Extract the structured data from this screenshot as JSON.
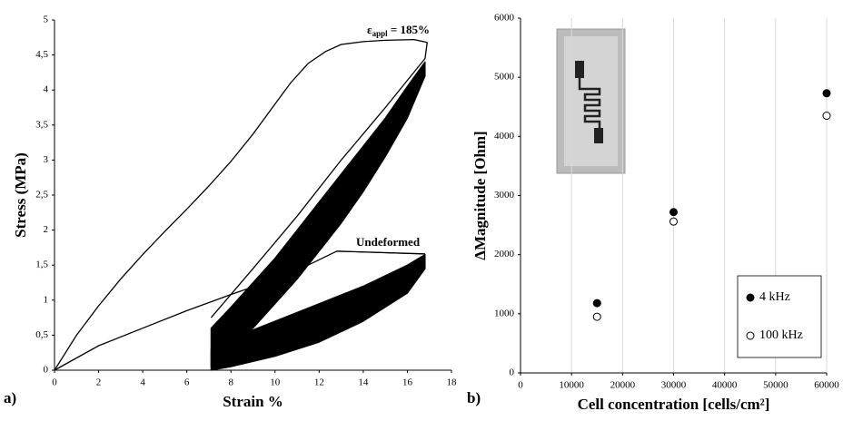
{
  "chart_data": [
    {
      "type": "line",
      "panel": "a)",
      "x_label": "Strain %",
      "y_label": "Stress (MPa)",
      "xlim": [
        0,
        18
      ],
      "xticks": [
        0,
        2,
        4,
        6,
        8,
        10,
        12,
        14,
        16,
        18
      ],
      "ylim": [
        0,
        5
      ],
      "yticks": [
        0,
        {
          "value": 0.5,
          "label": "0,5"
        },
        1,
        {
          "value": 1.5,
          "label": "1,5"
        },
        2,
        {
          "value": 2.5,
          "label": "2,5"
        },
        3,
        {
          "value": 3.5,
          "label": "3,5"
        },
        4,
        {
          "value": 4.5,
          "label": "4,5"
        },
        5
      ],
      "annotations": [
        {
          "symbol": "ε",
          "subscript": "appl",
          "text": " = 185%"
        },
        {
          "text": "Undeformed"
        }
      ],
      "series": [
        {
          "color": "#000000",
          "filled": false,
          "x": [
            0,
            1,
            2,
            3,
            4,
            5,
            6,
            7,
            8,
            9,
            10,
            10.7,
            11.5,
            12.3,
            13,
            14,
            15,
            16.3,
            16.9
          ],
          "values": [
            0,
            0.5,
            0.92,
            1.3,
            1.65,
            1.98,
            2.3,
            2.63,
            2.98,
            3.37,
            3.8,
            4.1,
            4.38,
            4.55,
            4.65,
            4.69,
            4.71,
            4.72,
            4.68
          ]
        },
        {
          "color": "#000000",
          "filled": false,
          "x": [
            16.9,
            16.8,
            15,
            13,
            11,
            9,
            7.1
          ],
          "values": [
            4.68,
            4.45,
            3.75,
            3.0,
            2.2,
            1.45,
            0.75
          ]
        },
        {
          "color": "#000000",
          "filled": true,
          "x": [
            7.1,
            8,
            9,
            10,
            11,
            12,
            13,
            14,
            15,
            16,
            16.8,
            16.8,
            16,
            15,
            14,
            13,
            12,
            11,
            10,
            9,
            8,
            7.1
          ],
          "values": [
            0.05,
            0.3,
            0.6,
            0.95,
            1.3,
            1.7,
            2.1,
            2.55,
            3.05,
            3.6,
            4.2,
            4.4,
            4.05,
            3.6,
            3.2,
            2.8,
            2.4,
            2.0,
            1.6,
            1.25,
            0.9,
            0.6
          ]
        },
        {
          "color": "#000000",
          "filled": false,
          "x": [
            0,
            2,
            4,
            6,
            8,
            10,
            11.5,
            12.8,
            16.8
          ],
          "values": [
            0,
            0.35,
            0.6,
            0.85,
            1.08,
            1.3,
            1.5,
            1.7,
            1.66
          ]
        },
        {
          "color": "#000000",
          "filled": true,
          "x": [
            7.1,
            8,
            10,
            12,
            14,
            16,
            16.8,
            16.8,
            16,
            14,
            12,
            10,
            8,
            7.1
          ],
          "values": [
            0,
            0.05,
            0.2,
            0.4,
            0.7,
            1.1,
            1.45,
            1.65,
            1.5,
            1.2,
            0.95,
            0.7,
            0.45,
            0.3
          ]
        }
      ]
    },
    {
      "type": "scatter",
      "panel": "b)",
      "x_label": "Cell concentration [cells/cm²]",
      "y_label": "ΔMagnitude [Ohm]",
      "xlim": [
        0,
        60000
      ],
      "xticks": [
        0,
        10000,
        20000,
        30000,
        40000,
        50000,
        60000
      ],
      "ylim": [
        0,
        6000
      ],
      "yticks": [
        0,
        1000,
        2000,
        3000,
        4000,
        5000,
        6000
      ],
      "grid": true,
      "legend": "lower right",
      "series": [
        {
          "name": "4 kHz",
          "color": "#000000",
          "filled": true,
          "x": [
            15000,
            30000,
            60000
          ],
          "values": [
            1180,
            2720,
            4730
          ]
        },
        {
          "name": "100 kHz",
          "color": "#000000",
          "filled": false,
          "x": [
            15000,
            30000,
            60000
          ],
          "values": [
            950,
            2560,
            4350
          ]
        }
      ]
    }
  ]
}
